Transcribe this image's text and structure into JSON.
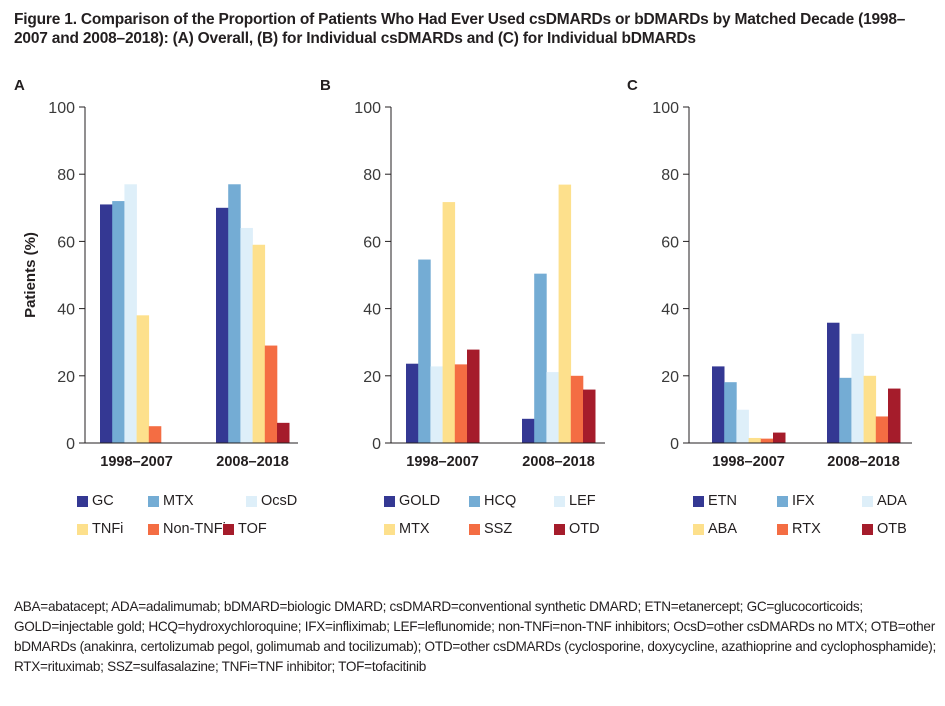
{
  "title": "Figure 1. Comparison of the Proportion of Patients Who Had Ever Used csDMARDs or bDMARDs by Matched Decade (1998–2007 and 2008–2018): (A) Overall, (B) for Individual csDMARDs and (C) for Individual bDMARDs",
  "colors": [
    "#343893",
    "#74acd4",
    "#deeff9",
    "#fde08c",
    "#f46d43",
    "#a51c2b"
  ],
  "chart_data": [
    {
      "panel": "A",
      "type": "bar",
      "title": "",
      "xlabel": "",
      "ylabel": "Patients (%)",
      "ylim": [
        0,
        100
      ],
      "yticks": [
        0,
        20,
        40,
        60,
        80,
        100
      ],
      "categories": [
        "1998–2007",
        "2008–2018"
      ],
      "legend_position": "bottom",
      "series": [
        {
          "name": "GC",
          "values": [
            71,
            70
          ]
        },
        {
          "name": "MTX",
          "values": [
            72,
            77
          ]
        },
        {
          "name": "OcsD",
          "values": [
            77,
            64
          ]
        },
        {
          "name": "TNFi",
          "values": [
            38,
            59
          ]
        },
        {
          "name": "Non-TNFi",
          "values": [
            5,
            29
          ]
        },
        {
          "name": "TOF",
          "values": [
            0,
            6
          ]
        }
      ]
    },
    {
      "panel": "B",
      "type": "bar",
      "title": "",
      "xlabel": "",
      "ylabel": "",
      "ylim": [
        0,
        100
      ],
      "yticks": [
        0,
        20,
        40,
        60,
        80,
        100
      ],
      "categories": [
        "1998–2007",
        "2008–2018"
      ],
      "legend_position": "bottom",
      "series": [
        {
          "name": "GOLD",
          "values": [
            23.6,
            7.2
          ]
        },
        {
          "name": "HCQ",
          "values": [
            54.6,
            50.4
          ]
        },
        {
          "name": "LEF",
          "values": [
            22.8,
            21.1
          ]
        },
        {
          "name": "MTX",
          "values": [
            71.7,
            76.9
          ]
        },
        {
          "name": "SSZ",
          "values": [
            23.4,
            20.0
          ]
        },
        {
          "name": "OTD",
          "values": [
            27.8,
            15.9
          ]
        }
      ]
    },
    {
      "panel": "C",
      "type": "bar",
      "title": "",
      "xlabel": "",
      "ylabel": "",
      "ylim": [
        0,
        100
      ],
      "yticks": [
        0,
        20,
        40,
        60,
        80,
        100
      ],
      "categories": [
        "1998–2007",
        "2008–2018"
      ],
      "legend_position": "bottom",
      "series": [
        {
          "name": "ETN",
          "values": [
            22.8,
            35.8
          ]
        },
        {
          "name": "IFX",
          "values": [
            18.1,
            19.4
          ]
        },
        {
          "name": "ADA",
          "values": [
            9.9,
            32.5
          ]
        },
        {
          "name": "ABA",
          "values": [
            1.5,
            20.0
          ]
        },
        {
          "name": "RTX",
          "values": [
            1.3,
            7.9
          ]
        },
        {
          "name": "OTB",
          "values": [
            3.1,
            16.2
          ]
        }
      ]
    }
  ],
  "footnote": "ABA=abatacept; ADA=adalimumab; bDMARD=biologic DMARD; csDMARD=conventional synthetic DMARD; ETN=etanercept; GC=glucocorticoids; GOLD=injectable gold; HCQ=hydroxychloroquine; IFX=infliximab; LEF=leflunomide; non-TNFi=non-TNF inhibitors; OcsD=other csDMARDs no MTX; OTB=other bDMARDs (anakinra, certolizumab pegol, golimumab and tocilizumab); OTD=other csDMARDs (cyclosporine, doxycycline, azathioprine and cyclophosphamide); RTX=rituximab; SSZ=sulfasalazine; TNFi=TNF inhibitor; TOF=tofacitinib"
}
